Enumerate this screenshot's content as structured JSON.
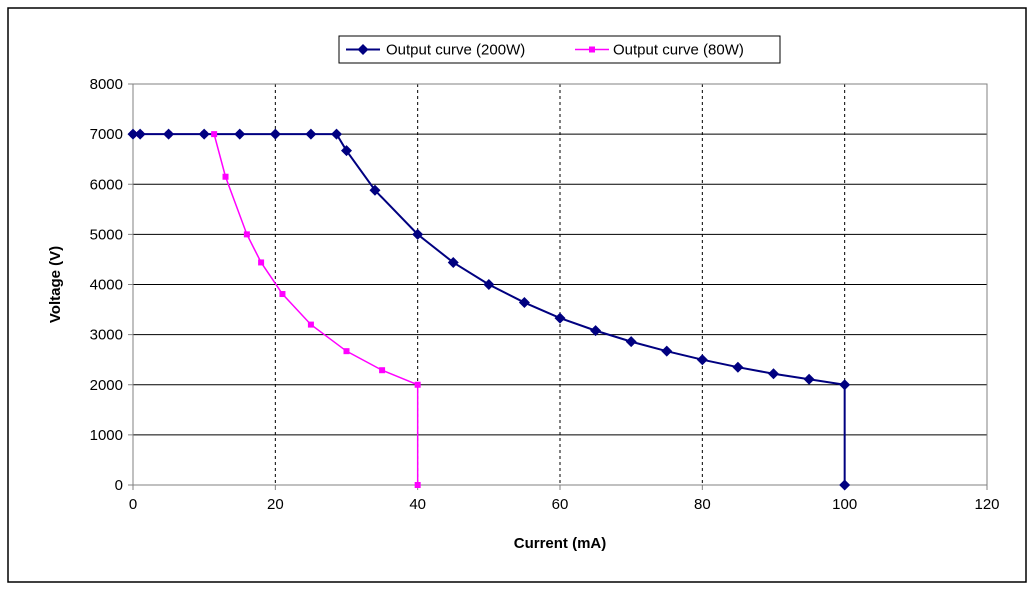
{
  "chart_data": {
    "type": "line",
    "xlabel": "Current (mA)",
    "ylabel": "Voltage (V)",
    "xlim": [
      0,
      120
    ],
    "ylim": [
      0,
      8000
    ],
    "x_ticks": [
      0,
      20,
      40,
      60,
      80,
      100,
      120
    ],
    "y_ticks": [
      0,
      1000,
      2000,
      3000,
      4000,
      5000,
      6000,
      7000,
      8000
    ],
    "grid": {
      "horizontal": "solid",
      "vertical": "dashed"
    },
    "legend_position": "top-center",
    "series": [
      {
        "name": "Output curve (200W)",
        "color": "#000080",
        "marker": "diamond",
        "x": [
          0,
          1,
          5,
          10,
          15,
          20,
          25,
          28.6,
          30,
          34,
          40,
          45,
          50,
          55,
          60,
          65,
          70,
          75,
          80,
          85,
          90,
          95,
          100,
          100
        ],
        "y": [
          7000,
          7000,
          7000,
          7000,
          7000,
          7000,
          7000,
          7000,
          6670,
          5880,
          5000,
          4440,
          4000,
          3640,
          3330,
          3080,
          2860,
          2670,
          2500,
          2350,
          2220,
          2110,
          2000,
          0
        ]
      },
      {
        "name": "Output curve (80W)",
        "color": "#ff00ff",
        "marker": "square",
        "x": [
          0,
          1,
          5,
          10,
          11.4,
          13,
          16,
          18,
          21,
          25,
          30,
          35,
          40,
          40
        ],
        "y": [
          7000,
          7000,
          7000,
          7000,
          7000,
          6150,
          5000,
          4440,
          3810,
          3200,
          2670,
          2290,
          2000,
          0
        ]
      }
    ]
  }
}
